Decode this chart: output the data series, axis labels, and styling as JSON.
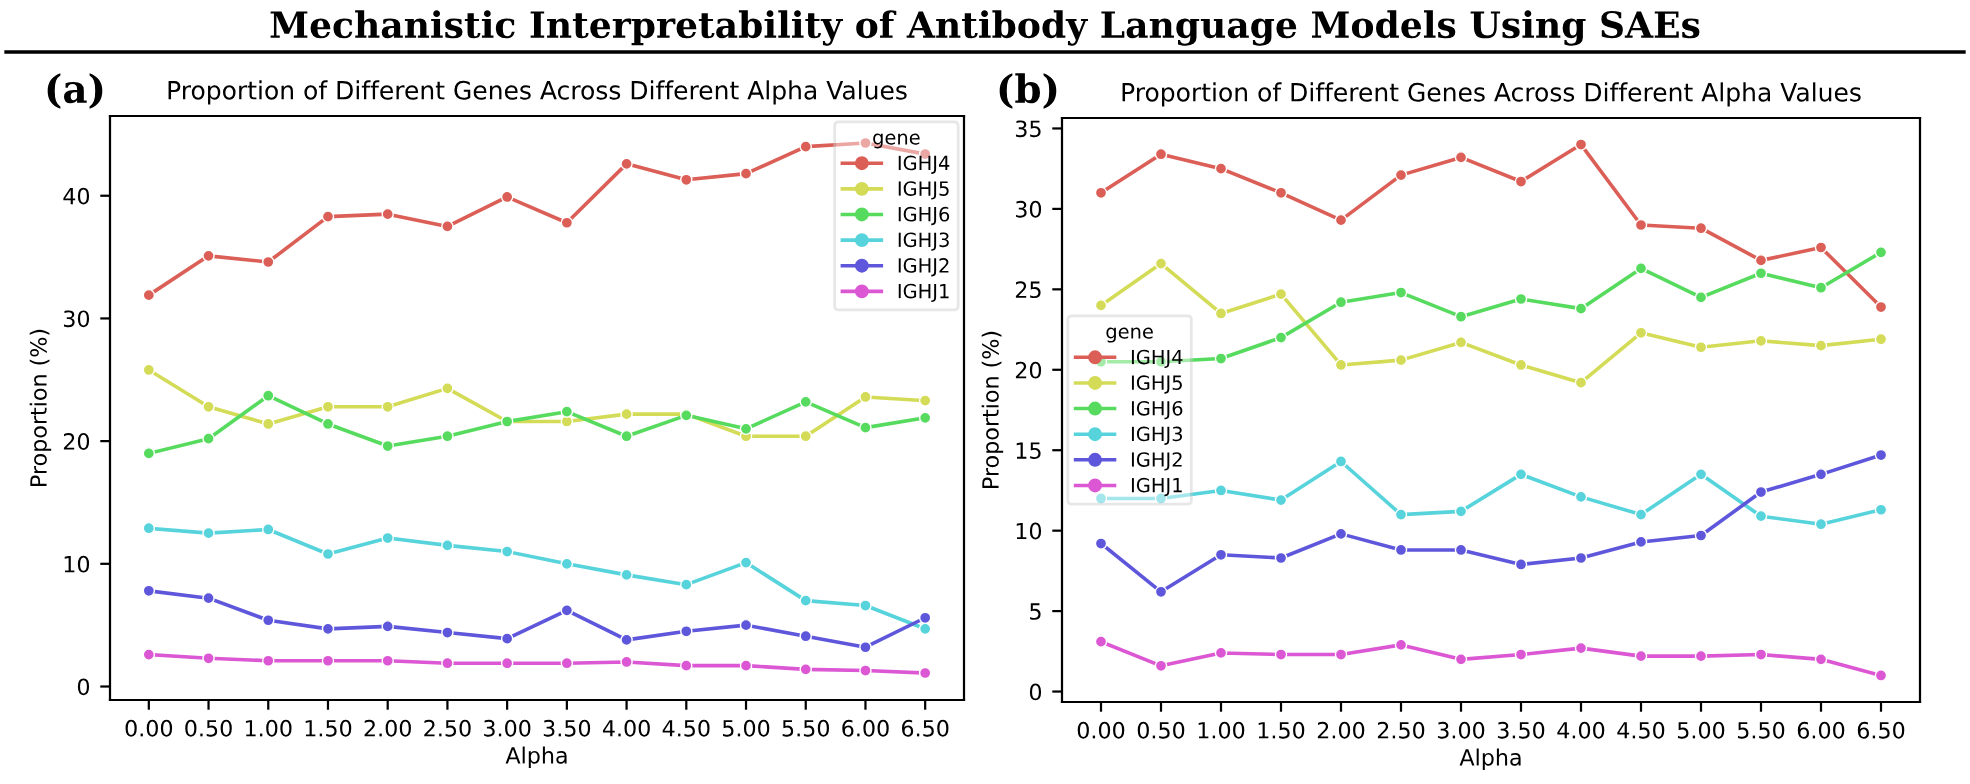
{
  "chart_data": [
    {
      "type": "line",
      "title": "Proportion of Different Genes Across Different Alpha Values",
      "xlabel": "Alpha",
      "ylabel": "Proportion (%)",
      "legend_title": "gene",
      "legend": "top right",
      "marker": "circle",
      "line_style": "solid",
      "grid": false,
      "annotations": [
        "Mechanistic Interpretability of Antibody Language Models Using SAEs",
        "(a)"
      ],
      "categories": [
        "0.00",
        "0.50",
        "1.00",
        "1.50",
        "2.00",
        "2.50",
        "3.00",
        "3.50",
        "4.00",
        "4.50",
        "5.00",
        "5.50",
        "6.00",
        "6.50"
      ],
      "ylim": [
        -1.1,
        46.5
      ],
      "yticks": [
        0,
        10,
        20,
        30,
        40
      ],
      "series": [
        {
          "name": "IGHJ4",
          "color": "#db5f57",
          "values": [
            31.9,
            35.1,
            34.6,
            38.3,
            38.5,
            37.5,
            39.9,
            37.8,
            42.6,
            41.3,
            41.8,
            44.0,
            44.3,
            43.4
          ]
        },
        {
          "name": "IGHJ5",
          "color": "#d3db57",
          "values": [
            25.8,
            22.8,
            21.4,
            22.8,
            22.8,
            24.3,
            21.6,
            21.6,
            22.2,
            22.2,
            20.4,
            20.4,
            23.6,
            23.3
          ]
        },
        {
          "name": "IGHJ6",
          "color": "#57db5f",
          "values": [
            19.0,
            20.2,
            23.7,
            21.4,
            19.6,
            20.4,
            21.6,
            22.4,
            20.4,
            22.1,
            21.0,
            23.2,
            21.1,
            21.9
          ]
        },
        {
          "name": "IGHJ3",
          "color": "#57d3db",
          "values": [
            12.9,
            12.5,
            12.8,
            10.8,
            12.1,
            11.5,
            11.0,
            10.0,
            9.1,
            8.3,
            10.1,
            7.0,
            6.6,
            4.7
          ]
        },
        {
          "name": "IGHJ2",
          "color": "#5f57db",
          "values": [
            7.8,
            7.2,
            5.4,
            4.7,
            4.9,
            4.4,
            3.9,
            6.2,
            3.8,
            4.5,
            5.0,
            4.1,
            3.2,
            5.6
          ]
        },
        {
          "name": "IGHJ1",
          "color": "#db57d3",
          "values": [
            2.6,
            2.3,
            2.1,
            2.1,
            2.1,
            1.9,
            1.9,
            1.9,
            2.0,
            1.7,
            1.7,
            1.4,
            1.3,
            1.1
          ]
        }
      ]
    },
    {
      "type": "line",
      "title": "Proportion of Different Genes Across Different Alpha Values",
      "xlabel": "Alpha",
      "ylabel": "Proportion (%)",
      "legend_title": "gene",
      "legend": "left",
      "marker": "circle",
      "line_style": "solid",
      "grid": false,
      "annotations": [
        "(b)"
      ],
      "categories": [
        "0.00",
        "0.50",
        "1.00",
        "1.50",
        "2.00",
        "2.50",
        "3.00",
        "3.50",
        "4.00",
        "4.50",
        "5.00",
        "5.50",
        "6.00",
        "6.50"
      ],
      "ylim": [
        -0.65,
        35.65
      ],
      "yticks": [
        0,
        5,
        10,
        15,
        20,
        25,
        30,
        35
      ],
      "series": [
        {
          "name": "IGHJ4",
          "color": "#db5f57",
          "values": [
            31.0,
            33.4,
            32.5,
            31.0,
            29.3,
            32.1,
            33.2,
            31.7,
            34.0,
            29.0,
            28.8,
            26.8,
            27.6,
            23.9
          ]
        },
        {
          "name": "IGHJ5",
          "color": "#d3db57",
          "values": [
            24.0,
            26.6,
            23.5,
            24.7,
            20.3,
            20.6,
            21.7,
            20.3,
            19.2,
            22.3,
            21.4,
            21.8,
            21.5,
            21.9
          ]
        },
        {
          "name": "IGHJ6",
          "color": "#57db5f",
          "values": [
            20.5,
            20.5,
            20.7,
            22.0,
            24.2,
            24.8,
            23.3,
            24.4,
            23.8,
            26.3,
            24.5,
            26.0,
            25.1,
            27.3
          ]
        },
        {
          "name": "IGHJ3",
          "color": "#57d3db",
          "values": [
            12.0,
            12.0,
            12.5,
            11.9,
            14.3,
            11.0,
            11.2,
            13.5,
            12.1,
            11.0,
            13.5,
            10.9,
            10.4,
            11.3
          ]
        },
        {
          "name": "IGHJ2",
          "color": "#5f57db",
          "values": [
            9.2,
            6.2,
            8.5,
            8.3,
            9.8,
            8.8,
            8.8,
            7.9,
            8.3,
            9.3,
            9.7,
            12.4,
            13.5,
            14.7
          ]
        },
        {
          "name": "IGHJ1",
          "color": "#db57d3",
          "values": [
            3.1,
            1.6,
            2.4,
            2.3,
            2.3,
            2.9,
            2.0,
            2.3,
            2.7,
            2.2,
            2.2,
            2.3,
            2.0,
            1.0
          ]
        }
      ]
    }
  ]
}
